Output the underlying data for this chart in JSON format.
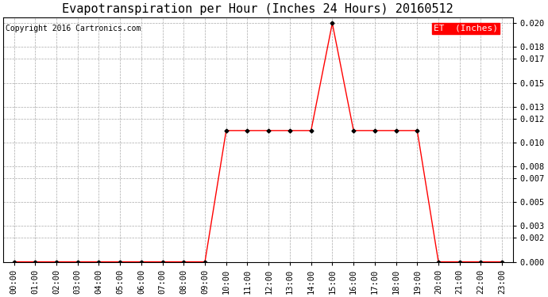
{
  "title": "Evapotranspiration per Hour (Inches 24 Hours) 20160512",
  "copyright": "Copyright 2016 Cartronics.com",
  "legend_label": "ET  (Inches)",
  "legend_bg": "#FF0000",
  "legend_text_color": "#FFFFFF",
  "line_color": "#FF0000",
  "marker_color": "#000000",
  "background_color": "#FFFFFF",
  "grid_color": "#AAAAAA",
  "hours": [
    "00:00",
    "01:00",
    "02:00",
    "03:00",
    "04:00",
    "05:00",
    "06:00",
    "07:00",
    "08:00",
    "09:00",
    "10:00",
    "11:00",
    "12:00",
    "13:00",
    "14:00",
    "15:00",
    "16:00",
    "17:00",
    "18:00",
    "19:00",
    "20:00",
    "21:00",
    "22:00",
    "23:00"
  ],
  "values": [
    0.0,
    0.0,
    0.0,
    0.0,
    0.0,
    0.0,
    0.0,
    0.0,
    0.0,
    0.0,
    0.011,
    0.011,
    0.011,
    0.011,
    0.011,
    0.02,
    0.011,
    0.011,
    0.011,
    0.011,
    0.0,
    0.0,
    0.0,
    0.0
  ],
  "ylim": [
    0.0,
    0.0205
  ],
  "yticks": [
    0.0,
    0.002,
    0.003,
    0.005,
    0.007,
    0.008,
    0.01,
    0.012,
    0.013,
    0.015,
    0.017,
    0.018,
    0.02
  ],
  "title_fontsize": 11,
  "copyright_fontsize": 7,
  "tick_fontsize": 7.5,
  "legend_fontsize": 8,
  "figsize": [
    6.9,
    3.75
  ],
  "dpi": 100
}
